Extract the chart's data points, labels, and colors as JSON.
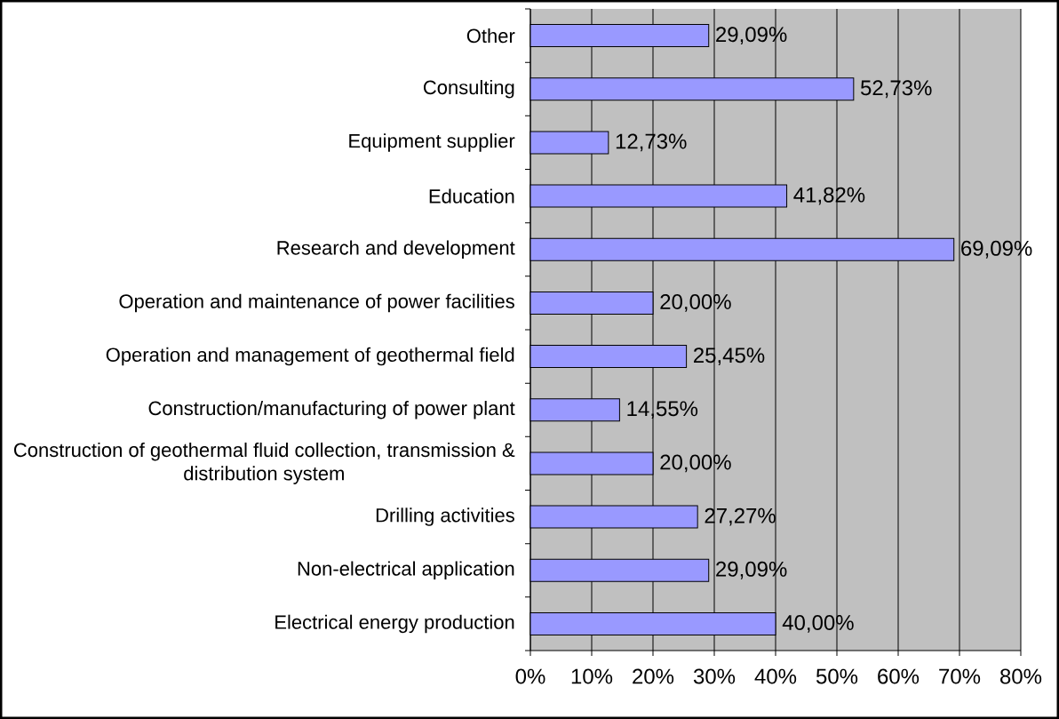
{
  "chart_data": {
    "type": "bar",
    "orientation": "horizontal",
    "categories": [
      "Other",
      "Consulting",
      "Equipment supplier",
      "Education",
      "Research and development",
      "Operation and maintenance of power facilities",
      "Operation and management of geothermal field",
      "Construction/manufacturing of power plant",
      "Construction of geothermal fluid collection, transmission & distribution system",
      "Drilling activities",
      "Non-electrical application",
      "Electrical energy production"
    ],
    "values": [
      29.09,
      52.73,
      12.73,
      41.82,
      69.09,
      20.0,
      25.45,
      14.55,
      20.0,
      27.27,
      29.09,
      40.0
    ],
    "value_labels": [
      "29,09%",
      "52,73%",
      "12,73%",
      "41,82%",
      "69,09%",
      "20,00%",
      "25,45%",
      "14,55%",
      "20,00%",
      "27,27%",
      "29,09%",
      "40,00%"
    ],
    "color": "#9999ff",
    "xlim": [
      0,
      80
    ],
    "xticks": [
      {
        "value": 0,
        "label": "0%"
      },
      {
        "value": 10,
        "label": "10%"
      },
      {
        "value": 20,
        "label": "20%"
      },
      {
        "value": 30,
        "label": "30%"
      },
      {
        "value": 40,
        "label": "40%"
      },
      {
        "value": 50,
        "label": "50%"
      },
      {
        "value": 60,
        "label": "60%"
      },
      {
        "value": 70,
        "label": "70%"
      },
      {
        "value": 80,
        "label": "80%"
      }
    ],
    "grid": "x"
  }
}
